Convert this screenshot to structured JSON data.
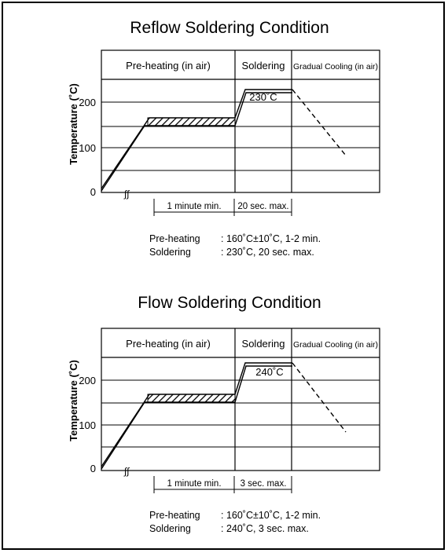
{
  "diagrams": [
    {
      "title": "Reflow Soldering Condition",
      "phases": [
        "Pre-heating (in air)",
        "Soldering",
        "Gradual Cooling (in air)"
      ],
      "ylabel": "Temperature (˚C)",
      "yticks": [
        "200",
        "100",
        "0"
      ],
      "peak_label": "230˚C",
      "durations": [
        "1 minute min.",
        "20 sec. max."
      ],
      "notes": [
        {
          "label": "Pre-heating",
          "value": ": 160˚C±10˚C, 1-2 min."
        },
        {
          "label": "Soldering",
          "value": ": 230˚C, 20 sec. max."
        }
      ]
    },
    {
      "title": "Flow Soldering Condition",
      "phases": [
        "Pre-heating (in air)",
        "Soldering",
        "Gradual Cooling (in air)"
      ],
      "ylabel": "Temperature (˚C)",
      "yticks": [
        "200",
        "100",
        "0"
      ],
      "peak_label": "240˚C",
      "durations": [
        "1 minute min.",
        "3 sec. max."
      ],
      "notes": [
        {
          "label": "Pre-heating",
          "value": ": 160˚C±10˚C, 1-2 min."
        },
        {
          "label": "Soldering",
          "value": ": 240˚C, 3 sec. max."
        }
      ]
    }
  ]
}
